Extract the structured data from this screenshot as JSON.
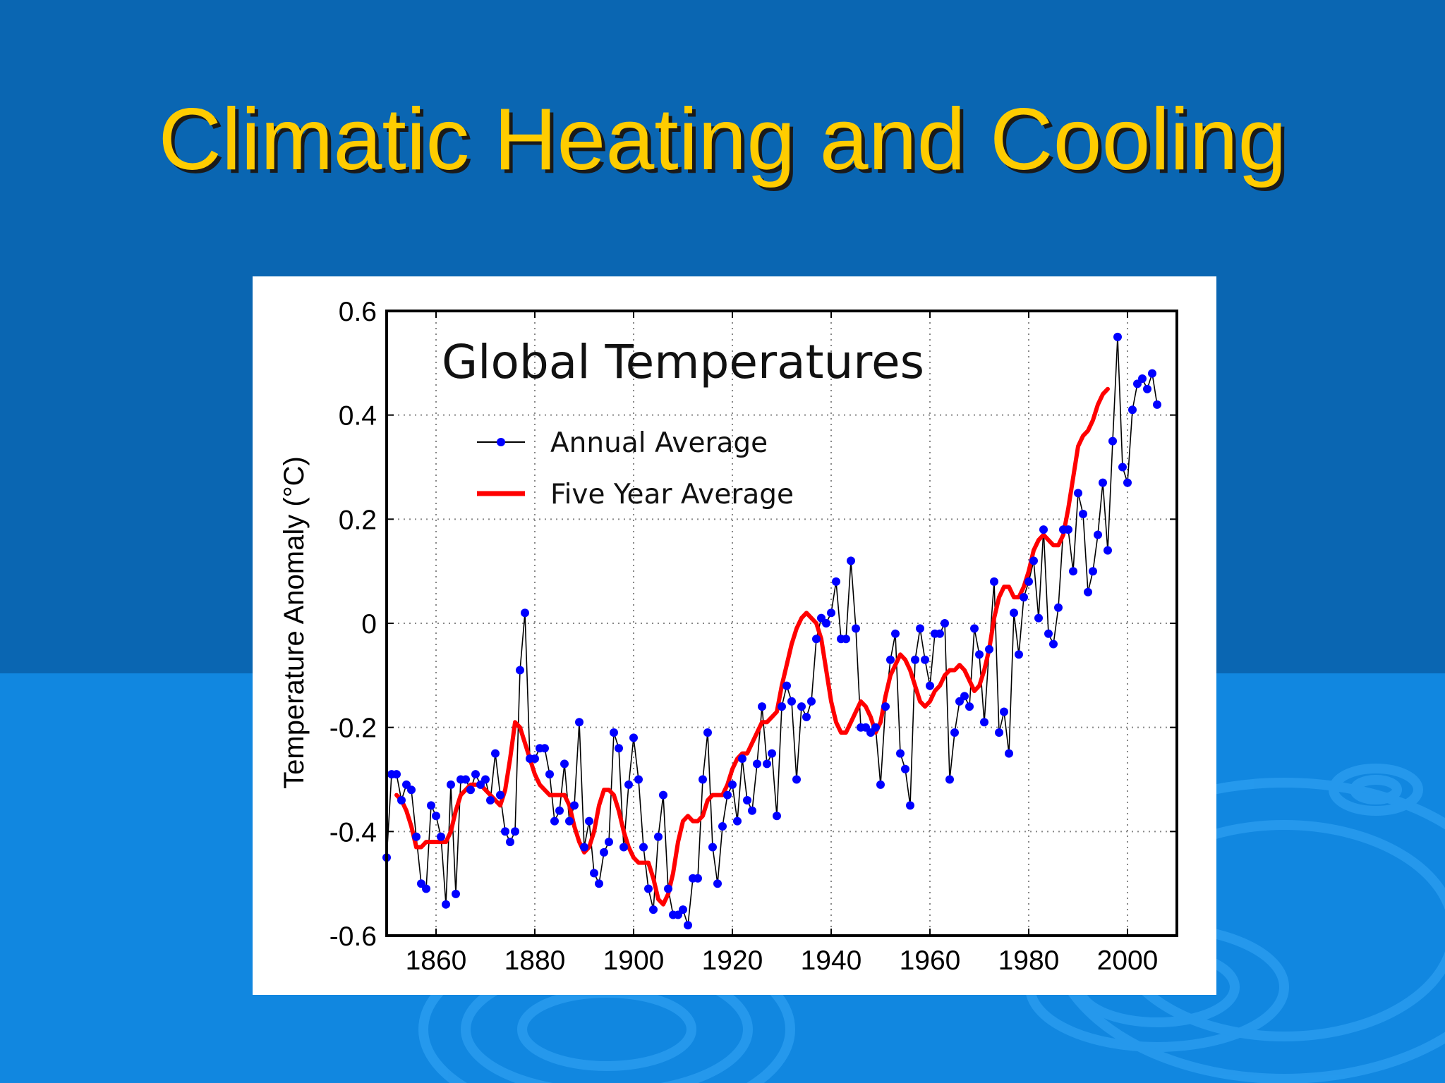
{
  "slide": {
    "title": "Climatic Heating and Cooling",
    "colors": {
      "background_top": "#0a66b2",
      "background_bottom": "#1187e0",
      "title": "#ffcc00",
      "title_shadow": "#1a1a1a",
      "ripple": "#2a9df0"
    }
  },
  "chart_data": {
    "type": "line",
    "title": "Global Temperatures",
    "xlabel": "",
    "ylabel": "Temperature Anomaly (°C)",
    "xlim": [
      1850,
      2010
    ],
    "ylim": [
      -0.6,
      0.6
    ],
    "xticks": [
      1860,
      1880,
      1900,
      1920,
      1940,
      1960,
      1980,
      2000
    ],
    "yticks": [
      0.6,
      0.4,
      0.2,
      0,
      -0.2,
      -0.4,
      -0.6
    ],
    "ytick_labels": [
      "0.6",
      "0.4",
      "0.2",
      "0",
      "-0.2",
      "-0.4",
      "-0.6"
    ],
    "grid": true,
    "legend_position": "top-left",
    "series": [
      {
        "name": "Annual Average",
        "style": "line-with-markers",
        "line_color": "#000000",
        "marker_color": "#0000ff",
        "x_start": 1850,
        "x_step": 1,
        "values": [
          -0.45,
          -0.29,
          -0.29,
          -0.34,
          -0.31,
          -0.32,
          -0.41,
          -0.5,
          -0.51,
          -0.35,
          -0.37,
          -0.41,
          -0.54,
          -0.31,
          -0.52,
          -0.3,
          -0.3,
          -0.32,
          -0.29,
          -0.31,
          -0.3,
          -0.34,
          -0.25,
          -0.33,
          -0.4,
          -0.42,
          -0.4,
          -0.09,
          0.02,
          -0.26,
          -0.26,
          -0.24,
          -0.24,
          -0.29,
          -0.38,
          -0.36,
          -0.27,
          -0.38,
          -0.35,
          -0.19,
          -0.43,
          -0.38,
          -0.48,
          -0.5,
          -0.44,
          -0.42,
          -0.21,
          -0.24,
          -0.43,
          -0.31,
          -0.22,
          -0.3,
          -0.43,
          -0.51,
          -0.55,
          -0.41,
          -0.33,
          -0.51,
          -0.56,
          -0.56,
          -0.55,
          -0.58,
          -0.49,
          -0.49,
          -0.3,
          -0.21,
          -0.43,
          -0.5,
          -0.39,
          -0.33,
          -0.31,
          -0.38,
          -0.26,
          -0.34,
          -0.36,
          -0.27,
          -0.16,
          -0.27,
          -0.25,
          -0.37,
          -0.16,
          -0.12,
          -0.15,
          -0.3,
          -0.16,
          -0.18,
          -0.15,
          -0.03,
          0.01,
          0.0,
          0.02,
          0.08,
          -0.03,
          -0.03,
          0.12,
          -0.01,
          -0.2,
          -0.2,
          -0.21,
          -0.2,
          -0.31,
          -0.16,
          -0.07,
          -0.02,
          -0.25,
          -0.28,
          -0.35,
          -0.07,
          -0.01,
          -0.07,
          -0.12,
          -0.02,
          -0.02,
          0.0,
          -0.3,
          -0.21,
          -0.15,
          -0.14,
          -0.16,
          -0.01,
          -0.06,
          -0.19,
          -0.05,
          0.08,
          -0.21,
          -0.17,
          -0.25,
          0.02,
          -0.06,
          0.05,
          0.08,
          0.12,
          0.01,
          0.18,
          -0.02,
          -0.04,
          0.03,
          0.18,
          0.18,
          0.1,
          0.25,
          0.21,
          0.06,
          0.1,
          0.17,
          0.27,
          0.14,
          0.35,
          0.55,
          0.3,
          0.27,
          0.41,
          0.46,
          0.47,
          0.45,
          0.48,
          0.42
        ]
      },
      {
        "name": "Five Year Average",
        "style": "line",
        "line_color": "#ff0000",
        "x_start": 1852,
        "x_step": 1,
        "values": [
          -0.33,
          -0.34,
          -0.36,
          -0.39,
          -0.43,
          -0.43,
          -0.42,
          -0.42,
          -0.42,
          -0.42,
          -0.42,
          -0.4,
          -0.36,
          -0.33,
          -0.32,
          -0.31,
          -0.31,
          -0.31,
          -0.32,
          -0.33,
          -0.34,
          -0.35,
          -0.32,
          -0.26,
          -0.19,
          -0.2,
          -0.23,
          -0.26,
          -0.29,
          -0.31,
          -0.32,
          -0.33,
          -0.33,
          -0.33,
          -0.33,
          -0.35,
          -0.39,
          -0.42,
          -0.44,
          -0.43,
          -0.4,
          -0.35,
          -0.32,
          -0.32,
          -0.33,
          -0.36,
          -0.4,
          -0.43,
          -0.45,
          -0.46,
          -0.46,
          -0.46,
          -0.49,
          -0.53,
          -0.54,
          -0.52,
          -0.48,
          -0.42,
          -0.38,
          -0.37,
          -0.38,
          -0.38,
          -0.37,
          -0.34,
          -0.33,
          -0.33,
          -0.33,
          -0.31,
          -0.28,
          -0.26,
          -0.25,
          -0.25,
          -0.23,
          -0.21,
          -0.19,
          -0.19,
          -0.18,
          -0.17,
          -0.12,
          -0.08,
          -0.04,
          -0.01,
          0.01,
          0.02,
          0.01,
          0.0,
          -0.03,
          -0.09,
          -0.15,
          -0.19,
          -0.21,
          -0.21,
          -0.19,
          -0.17,
          -0.15,
          -0.16,
          -0.18,
          -0.21,
          -0.19,
          -0.14,
          -0.1,
          -0.08,
          -0.06,
          -0.07,
          -0.09,
          -0.12,
          -0.15,
          -0.16,
          -0.15,
          -0.13,
          -0.12,
          -0.1,
          -0.09,
          -0.09,
          -0.08,
          -0.09,
          -0.11,
          -0.13,
          -0.12,
          -0.09,
          -0.05,
          0.01,
          0.05,
          0.07,
          0.07,
          0.05,
          0.05,
          0.07,
          0.1,
          0.14,
          0.16,
          0.17,
          0.16,
          0.15,
          0.15,
          0.17,
          0.22,
          0.28,
          0.34,
          0.36,
          0.37,
          0.39,
          0.42,
          0.44,
          0.45
        ]
      }
    ]
  }
}
